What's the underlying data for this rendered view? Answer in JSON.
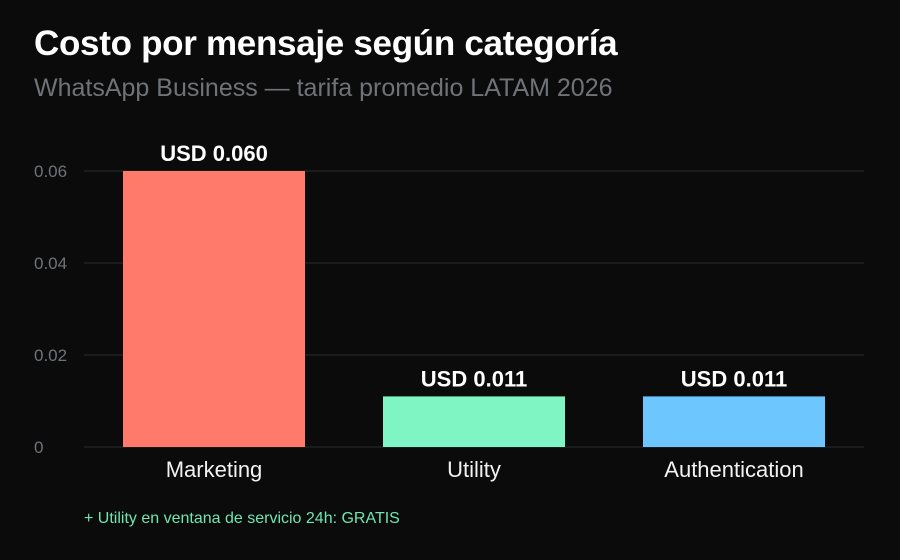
{
  "chart_data": {
    "type": "bar",
    "title": "Costo por mensaje según categoría",
    "subtitle": "WhatsApp Business — tarifa promedio LATAM 2026",
    "categories": [
      "Marketing",
      "Utility",
      "Authentication"
    ],
    "values": [
      0.06,
      0.011,
      0.011
    ],
    "value_labels": [
      "USD 0.060",
      "USD 0.011",
      "USD 0.011"
    ],
    "colors": [
      "#ff7a6a",
      "#7ff5c3",
      "#6ec6ff"
    ],
    "yticks": [
      0,
      0.02,
      0.04,
      0.06
    ],
    "ytick_labels": [
      "0",
      "0.02",
      "0.04",
      "0.06"
    ],
    "ylim": [
      0,
      0.06
    ],
    "xlabel": "",
    "ylabel": "",
    "grid": true,
    "legend": "none"
  },
  "footnote": "+ Utility en ventana de servicio 24h: GRATIS"
}
